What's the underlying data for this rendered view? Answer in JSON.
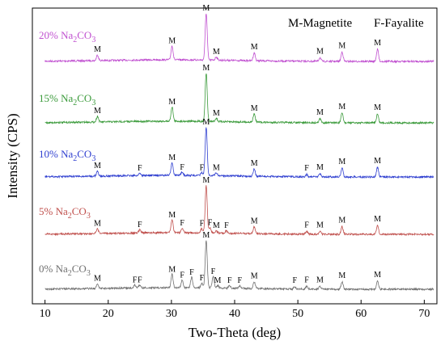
{
  "chart_data": {
    "type": "line",
    "title": "",
    "xlabel": "Two-Theta (deg)",
    "ylabel": "Intensity (CPS)",
    "xlim": [
      8,
      72
    ],
    "xticks": [
      10,
      20,
      30,
      40,
      50,
      60,
      70
    ],
    "yticks_shown": false,
    "grid": false,
    "legend_position": "top-right",
    "legend_items": [
      {
        "key": "M",
        "label": "M-Magnetite"
      },
      {
        "key": "F",
        "label": "F-Fayalite"
      }
    ],
    "series": [
      {
        "name_main": "20% Na",
        "name_sub": "2",
        "name_tail": "CO",
        "name_sub2": "3",
        "color": "#c050d0",
        "peaks": [
          {
            "x": 18.3,
            "h": 0.12,
            "label": "M"
          },
          {
            "x": 30.1,
            "h": 0.3,
            "label": "M"
          },
          {
            "x": 35.5,
            "h": 1.0,
            "label": "M"
          },
          {
            "x": 37.1,
            "h": 0.07,
            "label": "M"
          },
          {
            "x": 43.1,
            "h": 0.17,
            "label": "M"
          },
          {
            "x": 53.5,
            "h": 0.08,
            "label": "M"
          },
          {
            "x": 57.0,
            "h": 0.2,
            "label": "M"
          },
          {
            "x": 62.6,
            "h": 0.26,
            "label": "M"
          }
        ]
      },
      {
        "name_main": "15% Na",
        "name_sub": "2",
        "name_tail": "CO",
        "name_sub2": "3",
        "color": "#3a9a3a",
        "peaks": [
          {
            "x": 18.3,
            "h": 0.12,
            "label": "M"
          },
          {
            "x": 30.1,
            "h": 0.3,
            "label": "M"
          },
          {
            "x": 35.5,
            "h": 1.0,
            "label": "M"
          },
          {
            "x": 37.1,
            "h": 0.07,
            "label": "M"
          },
          {
            "x": 43.1,
            "h": 0.17,
            "label": "M"
          },
          {
            "x": 53.5,
            "h": 0.08,
            "label": "M"
          },
          {
            "x": 57.0,
            "h": 0.2,
            "label": "M"
          },
          {
            "x": 62.6,
            "h": 0.18,
            "label": "M"
          }
        ]
      },
      {
        "name_main": "10% Na",
        "name_sub": "2",
        "name_tail": "CO",
        "name_sub2": "3",
        "color": "#2f3fd0",
        "peaks": [
          {
            "x": 18.3,
            "h": 0.1,
            "label": "M"
          },
          {
            "x": 25.0,
            "h": 0.05,
            "label": "F"
          },
          {
            "x": 30.1,
            "h": 0.27,
            "label": "M"
          },
          {
            "x": 31.7,
            "h": 0.07,
            "label": "F"
          },
          {
            "x": 34.8,
            "h": 0.06,
            "label": "F"
          },
          {
            "x": 35.5,
            "h": 1.0,
            "label": "M"
          },
          {
            "x": 37.1,
            "h": 0.06,
            "label": "M"
          },
          {
            "x": 43.1,
            "h": 0.15,
            "label": "M"
          },
          {
            "x": 51.4,
            "h": 0.05,
            "label": "F"
          },
          {
            "x": 53.5,
            "h": 0.07,
            "label": "M"
          },
          {
            "x": 57.0,
            "h": 0.18,
            "label": "M"
          },
          {
            "x": 62.6,
            "h": 0.2,
            "label": "M"
          }
        ]
      },
      {
        "name_main": "5% Na",
        "name_sub": "2",
        "name_tail": "CO",
        "name_sub2": "3",
        "color": "#c0504d",
        "peaks": [
          {
            "x": 18.3,
            "h": 0.09,
            "label": "M"
          },
          {
            "x": 25.0,
            "h": 0.07,
            "label": "F"
          },
          {
            "x": 30.1,
            "h": 0.27,
            "label": "M"
          },
          {
            "x": 31.7,
            "h": 0.1,
            "label": "F"
          },
          {
            "x": 34.8,
            "h": 0.09,
            "label": "F"
          },
          {
            "x": 35.5,
            "h": 1.0,
            "label": "M"
          },
          {
            "x": 36.1,
            "h": 0.11,
            "label": "F"
          },
          {
            "x": 37.1,
            "h": 0.05,
            "label": "M"
          },
          {
            "x": 38.7,
            "h": 0.05,
            "label": "F"
          },
          {
            "x": 43.1,
            "h": 0.14,
            "label": "M"
          },
          {
            "x": 51.4,
            "h": 0.06,
            "label": "F"
          },
          {
            "x": 53.5,
            "h": 0.06,
            "label": "M"
          },
          {
            "x": 57.0,
            "h": 0.16,
            "label": "M"
          },
          {
            "x": 62.6,
            "h": 0.19,
            "label": "M"
          }
        ]
      },
      {
        "name_main": "0% Na",
        "name_sub": "2",
        "name_tail": "CO",
        "name_sub2": "3",
        "color": "#707070",
        "peaks": [
          {
            "x": 18.3,
            "h": 0.09,
            "label": "M"
          },
          {
            "x": 24.2,
            "h": 0.06,
            "label": "F"
          },
          {
            "x": 25.0,
            "h": 0.06,
            "label": "F"
          },
          {
            "x": 30.1,
            "h": 0.28,
            "label": "M"
          },
          {
            "x": 31.7,
            "h": 0.16,
            "label": "F"
          },
          {
            "x": 33.2,
            "h": 0.22,
            "label": "F"
          },
          {
            "x": 34.8,
            "h": 0.1,
            "label": "F"
          },
          {
            "x": 35.5,
            "h": 1.0,
            "label": "M"
          },
          {
            "x": 36.6,
            "h": 0.24,
            "label": "F"
          },
          {
            "x": 37.3,
            "h": 0.05,
            "label": "M"
          },
          {
            "x": 39.2,
            "h": 0.05,
            "label": "F"
          },
          {
            "x": 40.8,
            "h": 0.05,
            "label": "F"
          },
          {
            "x": 43.1,
            "h": 0.14,
            "label": "M"
          },
          {
            "x": 49.5,
            "h": 0.05,
            "label": "F"
          },
          {
            "x": 51.4,
            "h": 0.06,
            "label": "F"
          },
          {
            "x": 53.5,
            "h": 0.06,
            "label": "M"
          },
          {
            "x": 57.0,
            "h": 0.15,
            "label": "M"
          },
          {
            "x": 62.6,
            "h": 0.17,
            "label": "M"
          }
        ]
      }
    ]
  }
}
